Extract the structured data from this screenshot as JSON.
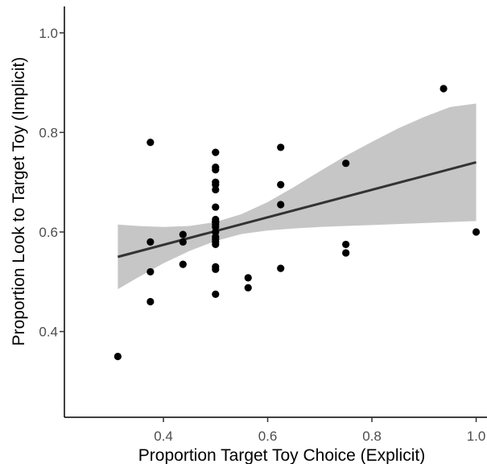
{
  "chart_data": {
    "type": "scatter",
    "title": "",
    "xlabel": "Proportion Target Toy Choice (Explicit)",
    "ylabel": "Proportion Look to Target Toy (Implicit)",
    "xlim": [
      0.3,
      1.0
    ],
    "ylim": [
      0.3,
      1.0
    ],
    "x_ticks": [
      0.4,
      0.6,
      0.8,
      1.0
    ],
    "x_tick_labels": [
      "0.4",
      "0.6",
      "0.8",
      "1.0"
    ],
    "y_ticks": [
      0.4,
      0.6,
      0.8,
      1.0
    ],
    "y_tick_labels": [
      "0.4",
      "0.6",
      "0.8",
      "1.0"
    ],
    "grid": false,
    "points": {
      "x": [
        0.3125,
        0.375,
        0.375,
        0.375,
        0.375,
        0.4375,
        0.4375,
        0.4375,
        0.5,
        0.5,
        0.5,
        0.5,
        0.5,
        0.5,
        0.5,
        0.5,
        0.5,
        0.5,
        0.5,
        0.5,
        0.5,
        0.5,
        0.5,
        0.5,
        0.5,
        0.5,
        0.5,
        0.5,
        0.5625,
        0.5625,
        0.625,
        0.625,
        0.625,
        0.625,
        0.75,
        0.75,
        0.75,
        0.9375,
        1.0
      ],
      "y": [
        0.35,
        0.78,
        0.58,
        0.52,
        0.46,
        0.595,
        0.58,
        0.535,
        0.76,
        0.73,
        0.725,
        0.7,
        0.695,
        0.685,
        0.65,
        0.625,
        0.615,
        0.59,
        0.58,
        0.575,
        0.53,
        0.525,
        0.475,
        0.62,
        0.61,
        0.6,
        0.585,
        0.62,
        0.508,
        0.488,
        0.77,
        0.695,
        0.655,
        0.527,
        0.738,
        0.575,
        0.558,
        0.888,
        0.6
      ]
    },
    "fit_line": {
      "x": [
        0.3125,
        1.0
      ],
      "y": [
        0.55,
        0.74
      ]
    },
    "confidence_band": {
      "x": [
        0.3125,
        0.35,
        0.4,
        0.45,
        0.5,
        0.55,
        0.6,
        0.65,
        0.7,
        0.75,
        0.8,
        0.85,
        0.9,
        0.95,
        1.0
      ],
      "lower": [
        0.485,
        0.508,
        0.537,
        0.562,
        0.582,
        0.596,
        0.603,
        0.607,
        0.61,
        0.612,
        0.614,
        0.616,
        0.618,
        0.62,
        0.622
      ],
      "upper": [
        0.615,
        0.612,
        0.61,
        0.612,
        0.62,
        0.636,
        0.66,
        0.69,
        0.722,
        0.753,
        0.781,
        0.808,
        0.831,
        0.851,
        0.858
      ]
    },
    "colors": {
      "points": "#000000",
      "fit_line": "#333333",
      "band": "#c6c6c6"
    }
  }
}
